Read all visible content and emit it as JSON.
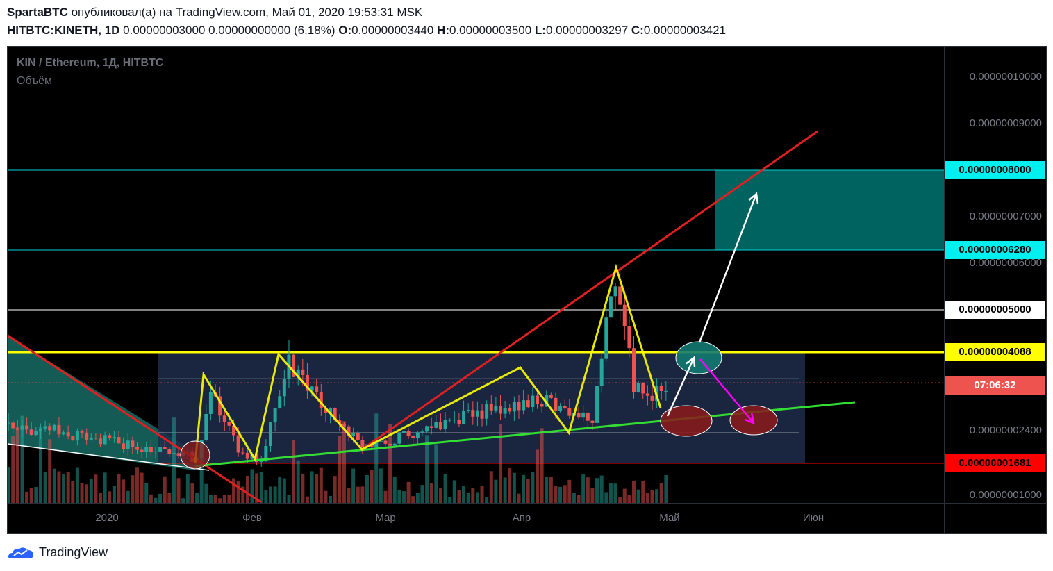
{
  "header": {
    "author": "SpartaBTC",
    "published_text": " опубликовал(а) на TradingView.com, Май 01, 2020 19:53:31 MSK",
    "symbol": "HITBTC:KINETH, 1D",
    "change_text": " 0.00000003000 0.00000000000 (6.18%) ",
    "o_label": "O:",
    "o_value": "0.00000003440",
    "h_label": "H:",
    "h_value": "0.00000003500",
    "l_label": "L:",
    "l_value": "0.00000003297",
    "c_label": "C:",
    "c_value": "0.00000003421"
  },
  "chart_legend": {
    "title": "KIN / Ethereum, 1Д, HITBTC",
    "volume": "Объём"
  },
  "footer": {
    "brand": "TradingView"
  },
  "colors": {
    "background": "#000000",
    "up": "#26a69a",
    "down": "#ef5350",
    "yellow": "#ffff00",
    "red_line": "#e02020",
    "green_line": "#33dd33",
    "cyan_zone": "#00d4d4",
    "highlight_label": "#00f0f0",
    "red_label": "#ff0000"
  },
  "price_axis": {
    "ticks": [
      {
        "label": "0.00000010000",
        "value": 1e-07
      },
      {
        "label": "0.00000009000",
        "value": 9e-08
      },
      {
        "label": "0.00000007000",
        "value": 7e-08
      },
      {
        "label": "0.00000006000",
        "value": 6e-08
      },
      {
        "label": "0.00000003200",
        "value": 3.2e-08
      },
      {
        "label": "0.00000002400",
        "value": 2.4e-08
      },
      {
        "label": "0.00000001000",
        "value": 1e-08
      }
    ],
    "highlight_labels": [
      {
        "label": "0.00000008000",
        "value": 8e-08,
        "bg": "#00f0f0",
        "color": "#000000"
      },
      {
        "label": "0.00000006280",
        "value": 6.28e-08,
        "bg": "#00f0f0",
        "color": "#000000"
      },
      {
        "label": "0.00000005000",
        "value": 5e-08,
        "bg": "#ffffff",
        "color": "#000000"
      },
      {
        "label": "0.00000004088",
        "value": 4.088e-08,
        "bg": "#ffff00",
        "color": "#000000"
      },
      {
        "label": "07:06:32",
        "value": 3.35e-08,
        "bg": "#ef5350",
        "color": "#ffffff"
      },
      {
        "label": "0.00000001681",
        "value": 1.681e-08,
        "bg": "#ff0000",
        "color": "#000000"
      }
    ]
  },
  "time_axis": {
    "labels": [
      "2020",
      "Фев",
      "Мар",
      "Апр",
      "Май",
      "Июн"
    ]
  },
  "chart_data": {
    "type": "candlestick",
    "title": "KIN / Ethereum, 1Д, HITBTC",
    "symbol": "HITBTC:KINETH",
    "interval": "1D",
    "last_close": 3.421e-08,
    "countdown": "07:06:32",
    "time_labels": [
      "2020",
      "Фев",
      "Мар",
      "Апр",
      "Май",
      "Июн"
    ],
    "horizontal_levels": [
      8e-08,
      6.28e-08,
      5e-08,
      4.088e-08,
      1.681e-08
    ],
    "target_zone": [
      6.28e-08,
      8e-08
    ],
    "range_box": [
      1.681e-08,
      4.088e-08
    ],
    "range_inner_lines": [
      3.5e-08,
      2.35e-08
    ],
    "pattern_peaks": [
      {
        "date": "2020-01-22",
        "price": 3.45e-08
      },
      {
        "date": "2020-02-08",
        "price": 4e-08
      },
      {
        "date": "2020-04-19",
        "price": 5.9e-08
      }
    ],
    "volume_shown": true,
    "grid": false,
    "legend_position": "top-left"
  }
}
